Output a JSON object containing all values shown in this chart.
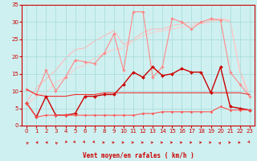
{
  "title": "",
  "xlabel": "Vent moyen/en rafales ( km/h )",
  "ylabel": "",
  "xlim": [
    -0.5,
    23.5
  ],
  "ylim": [
    0,
    35
  ],
  "xticks": [
    0,
    1,
    2,
    3,
    4,
    5,
    6,
    7,
    8,
    9,
    10,
    11,
    12,
    13,
    14,
    15,
    16,
    17,
    18,
    19,
    20,
    21,
    22,
    23
  ],
  "yticks": [
    0,
    5,
    10,
    15,
    20,
    25,
    30,
    35
  ],
  "bg_color": "#cff0f0",
  "grid_color": "#aadddd",
  "lines": [
    {
      "x": [
        0,
        1,
        2,
        3,
        4,
        5,
        6,
        7,
        8,
        9,
        10,
        11,
        12,
        13,
        14,
        15,
        16,
        17,
        18,
        19,
        20,
        21,
        22,
        23
      ],
      "y": [
        10.5,
        9.0,
        16.0,
        10.0,
        14.0,
        19.0,
        18.5,
        18.0,
        21.0,
        26.5,
        16.0,
        33.0,
        33.0,
        14.0,
        17.0,
        31.0,
        30.0,
        28.0,
        30.0,
        31.0,
        30.5,
        15.5,
        12.0,
        8.5
      ],
      "color": "#ff8888",
      "lw": 0.8,
      "marker": "D",
      "ms": 1.8,
      "zorder": 2
    },
    {
      "x": [
        0,
        1,
        2,
        3,
        4,
        5,
        6,
        7,
        8,
        9,
        10,
        11,
        12,
        13,
        14,
        15,
        16,
        17,
        18,
        19,
        20,
        21,
        22,
        23
      ],
      "y": [
        7.0,
        11.0,
        13.5,
        16.0,
        19.5,
        22.0,
        22.5,
        24.5,
        26.0,
        27.5,
        23.5,
        25.0,
        27.0,
        28.0,
        28.0,
        29.0,
        29.5,
        30.0,
        29.5,
        30.5,
        31.0,
        30.0,
        16.0,
        8.5
      ],
      "color": "#ffbbbb",
      "lw": 0.8,
      "marker": null,
      "ms": 0,
      "zorder": 1
    },
    {
      "x": [
        0,
        1,
        2,
        3,
        4,
        5,
        6,
        7,
        8,
        9,
        10,
        11,
        12,
        13,
        14,
        15,
        16,
        17,
        18,
        19,
        20,
        21,
        22,
        23
      ],
      "y": [
        6.0,
        8.5,
        9.5,
        12.5,
        14.0,
        16.5,
        17.5,
        19.5,
        21.0,
        22.0,
        22.5,
        24.5,
        26.0,
        27.0,
        27.5,
        28.0,
        28.5,
        29.0,
        29.5,
        30.0,
        31.0,
        30.5,
        15.5,
        8.0
      ],
      "color": "#ffcccc",
      "lw": 0.8,
      "marker": null,
      "ms": 0,
      "zorder": 1
    },
    {
      "x": [
        0,
        1,
        2,
        3,
        4,
        5,
        6,
        7,
        8,
        9,
        10,
        11,
        12,
        13,
        14,
        15,
        16,
        17,
        18,
        19,
        20,
        21,
        22,
        23
      ],
      "y": [
        6.5,
        2.5,
        8.5,
        3.0,
        3.0,
        3.5,
        8.5,
        8.5,
        9.0,
        9.0,
        12.0,
        15.5,
        14.0,
        17.0,
        14.5,
        15.0,
        16.5,
        15.5,
        15.5,
        9.5,
        17.0,
        5.5,
        5.0,
        4.5
      ],
      "color": "#cc0000",
      "lw": 1.0,
      "marker": "D",
      "ms": 2.0,
      "zorder": 3
    },
    {
      "x": [
        0,
        1,
        2,
        3,
        4,
        5,
        6,
        7,
        8,
        9,
        10,
        11,
        12,
        13,
        14,
        15,
        16,
        17,
        18,
        19,
        20,
        21,
        22,
        23
      ],
      "y": [
        10.5,
        9.0,
        8.5,
        8.5,
        8.5,
        9.0,
        9.0,
        9.0,
        9.5,
        9.5,
        9.5,
        9.5,
        9.5,
        9.5,
        9.5,
        9.5,
        9.5,
        9.5,
        9.5,
        9.5,
        9.5,
        9.5,
        9.5,
        9.0
      ],
      "color": "#ee3333",
      "lw": 0.8,
      "marker": null,
      "ms": 0,
      "zorder": 2
    },
    {
      "x": [
        0,
        1,
        2,
        3,
        4,
        5,
        6,
        7,
        8,
        9,
        10,
        11,
        12,
        13,
        14,
        15,
        16,
        17,
        18,
        19,
        20,
        21,
        22,
        23
      ],
      "y": [
        6.5,
        2.5,
        3.0,
        3.0,
        3.0,
        3.0,
        3.0,
        3.0,
        3.0,
        3.0,
        3.0,
        3.0,
        3.5,
        3.5,
        4.0,
        4.0,
        4.0,
        4.0,
        4.0,
        4.0,
        5.5,
        4.5,
        4.5,
        4.5
      ],
      "color": "#ff5555",
      "lw": 0.8,
      "marker": "D",
      "ms": 1.5,
      "zorder": 3
    }
  ],
  "wind_arrows": {
    "x_positions": [
      0,
      1,
      2,
      3,
      4,
      5,
      6,
      7,
      8,
      9,
      10,
      11,
      12,
      13,
      14,
      15,
      16,
      17,
      18,
      19,
      20,
      21,
      22,
      23
    ],
    "angles": [
      225,
      270,
      270,
      225,
      315,
      45,
      45,
      45,
      90,
      90,
      90,
      90,
      90,
      90,
      90,
      90,
      90,
      90,
      90,
      90,
      135,
      90,
      90,
      45
    ],
    "color": "#cc0000"
  }
}
